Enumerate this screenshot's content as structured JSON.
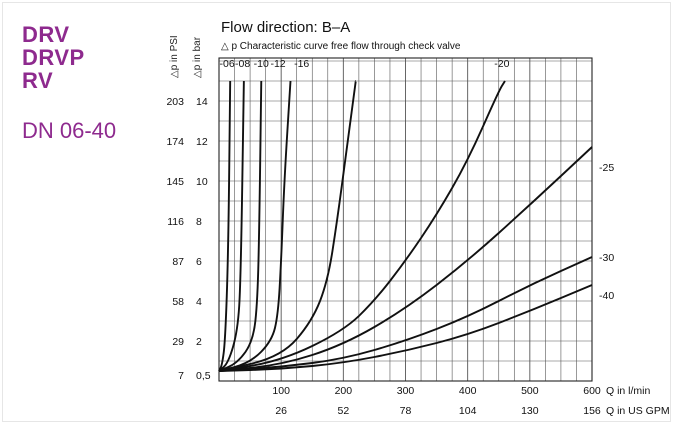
{
  "header": {
    "products": [
      "DRV",
      "DRVP",
      "RV"
    ],
    "size_range": "DN 06-40",
    "accent_color": "#8e2a8e"
  },
  "chart_data": {
    "type": "line",
    "title": "Flow direction: B–A",
    "subtitle": "△ p Characteristic curve free flow through check valve",
    "xlabel": "Q in l/min",
    "xlabel_secondary": "Q in US GPM",
    "ylabel": "△p in bar",
    "ylabel_secondary": "△p in PSI",
    "xlim": [
      0,
      600
    ],
    "ylim": [
      0,
      15
    ],
    "grid": true,
    "x_ticks": [
      {
        "v": 100,
        "label": "100"
      },
      {
        "v": 200,
        "label": "200"
      },
      {
        "v": 300,
        "label": "300"
      },
      {
        "v": 400,
        "label": "400"
      },
      {
        "v": 500,
        "label": "500"
      },
      {
        "v": 600,
        "label": "600"
      }
    ],
    "x_ticks_secondary": [
      {
        "v": 100,
        "label": "26"
      },
      {
        "v": 200,
        "label": "52"
      },
      {
        "v": 300,
        "label": "78"
      },
      {
        "v": 400,
        "label": "104"
      },
      {
        "v": 500,
        "label": "130"
      },
      {
        "v": 600,
        "label": "156"
      }
    ],
    "y_ticks": [
      {
        "v": 0.5,
        "label": "0,5",
        "psi": "7"
      },
      {
        "v": 2,
        "label": "2",
        "psi": "29"
      },
      {
        "v": 4,
        "label": "4",
        "psi": "58"
      },
      {
        "v": 6,
        "label": "6",
        "psi": "87"
      },
      {
        "v": 8,
        "label": "8",
        "psi": "116"
      },
      {
        "v": 10,
        "label": "10",
        "psi": "145"
      },
      {
        "v": 12,
        "label": "12",
        "psi": "174"
      },
      {
        "v": 14,
        "label": "14",
        "psi": "203"
      }
    ],
    "series": [
      {
        "name": "-06",
        "label_pos": "top",
        "label_x": 13,
        "points": [
          [
            0,
            0.5
          ],
          [
            5,
            0.8
          ],
          [
            10,
            2.0
          ],
          [
            15,
            6.5
          ],
          [
            18,
            15
          ]
        ]
      },
      {
        "name": "-08",
        "label_pos": "top",
        "label_x": 38,
        "points": [
          [
            0,
            0.5
          ],
          [
            15,
            0.9
          ],
          [
            30,
            2.5
          ],
          [
            35,
            5.0
          ],
          [
            40,
            15
          ]
        ]
      },
      {
        "name": "-10",
        "label_pos": "top",
        "label_x": 68,
        "points": [
          [
            0,
            0.5
          ],
          [
            30,
            0.9
          ],
          [
            55,
            2.0
          ],
          [
            62,
            4.0
          ],
          [
            65,
            8.0
          ],
          [
            68,
            15
          ]
        ]
      },
      {
        "name": "-12",
        "label_pos": "top",
        "label_x": 95,
        "points": [
          [
            0,
            0.5
          ],
          [
            50,
            0.9
          ],
          [
            85,
            2.0
          ],
          [
            95,
            3.3
          ],
          [
            100,
            6.0
          ],
          [
            105,
            10.0
          ],
          [
            115,
            15
          ]
        ]
      },
      {
        "name": "-16",
        "label_pos": "top",
        "label_x": 133,
        "points": [
          [
            0,
            0.5
          ],
          [
            100,
            1.2
          ],
          [
            150,
            3.0
          ],
          [
            175,
            5.0
          ],
          [
            190,
            8.0
          ],
          [
            205,
            11.5
          ],
          [
            220,
            15
          ]
        ]
      },
      {
        "name": "-20",
        "label_pos": "top",
        "label_x": 455,
        "points": [
          [
            0,
            0.5
          ],
          [
            100,
            1.0
          ],
          [
            200,
            2.5
          ],
          [
            250,
            4.0
          ],
          [
            300,
            6.0
          ],
          [
            350,
            8.3
          ],
          [
            400,
            11.0
          ],
          [
            450,
            14.5
          ],
          [
            460,
            15
          ]
        ]
      },
      {
        "name": "-25",
        "label_pos": "right",
        "label_y": 10.7,
        "points": [
          [
            0,
            0.5
          ],
          [
            100,
            0.8
          ],
          [
            200,
            1.8
          ],
          [
            300,
            3.6
          ],
          [
            400,
            6.0
          ],
          [
            500,
            8.8
          ],
          [
            600,
            11.7
          ]
        ]
      },
      {
        "name": "-30",
        "label_pos": "right",
        "label_y": 6.2,
        "points": [
          [
            0,
            0.5
          ],
          [
            100,
            0.7
          ],
          [
            200,
            1.1
          ],
          [
            300,
            2.0
          ],
          [
            400,
            3.2
          ],
          [
            500,
            4.8
          ],
          [
            600,
            6.2
          ]
        ]
      },
      {
        "name": "-40",
        "label_pos": "right",
        "label_y": 4.3,
        "points": [
          [
            0,
            0.5
          ],
          [
            100,
            0.6
          ],
          [
            200,
            0.9
          ],
          [
            300,
            1.5
          ],
          [
            400,
            2.3
          ],
          [
            500,
            3.5
          ],
          [
            600,
            4.8
          ]
        ]
      }
    ]
  }
}
